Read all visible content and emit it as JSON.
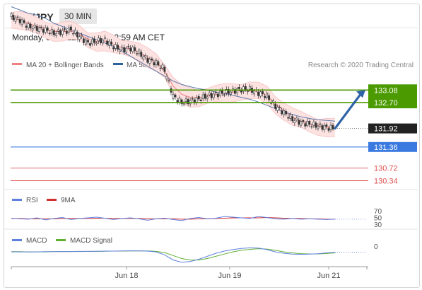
{
  "header": {
    "pair": "GBP/JPY",
    "timeframe": "30 MIN"
  },
  "timestamp": "Monday, June 22, 2020 1:02:59 AM CET",
  "main_legend": {
    "bb": "MA 20 + Bollinger Bands",
    "ma50": "MA 50",
    "credit": "Research © 2020 Trading Central"
  },
  "rsi_legend": {
    "rsi": "RSI",
    "ma": "9MA"
  },
  "macd_legend": {
    "macd": "MACD",
    "signal": "MACD Signal"
  },
  "colors": {
    "bb": "#f08080",
    "bb_fill": "#fde2e2",
    "ma50": "#5a78a8",
    "resistance": "#4a9a00",
    "pivot": "#3a7ae0",
    "support": "#e05050",
    "candle": "#333333",
    "rsi": "#6080e0",
    "rsi_ma": "#d03030",
    "macd": "#6080e0",
    "macd_signal": "#60b030",
    "arrow": "#2f63a8",
    "current": "#222222"
  },
  "chart_data": [
    {
      "type": "candlestick",
      "title": "GBP/JPY",
      "interval": "30 MIN",
      "x_tick_labels": [
        "Jun 18",
        "Jun 19",
        "Jun 21"
      ],
      "ylim": [
        130.2,
        133.6
      ],
      "levels": [
        {
          "label": "133.08",
          "value": 133.08,
          "kind": "resistance"
        },
        {
          "label": "132.70",
          "value": 132.7,
          "kind": "resistance"
        },
        {
          "label": "131.92",
          "value": 131.92,
          "kind": "current"
        },
        {
          "label": "131.36",
          "value": 131.36,
          "kind": "pivot"
        },
        {
          "label": "130.72",
          "value": 130.72,
          "kind": "support"
        },
        {
          "label": "130.34",
          "value": 130.34,
          "kind": "support"
        }
      ],
      "price_series": [
        {
          "name": "close",
          "values": [
            135.3,
            135.2,
            135.0,
            134.95,
            134.9,
            134.8,
            134.85,
            134.9,
            134.7,
            134.5,
            134.55,
            134.6,
            134.4,
            134.3,
            134.35,
            134.2,
            134.0,
            133.9,
            133.7,
            132.9,
            132.7,
            132.75,
            132.8,
            132.9,
            132.95,
            133.0,
            133.05,
            133.1,
            133.1,
            133.0,
            132.9,
            132.6,
            132.4,
            132.2,
            132.1,
            132.05,
            132.0,
            131.95,
            131.92
          ]
        },
        {
          "name": "MA 50",
          "values": [
            135.6,
            135.5,
            135.4,
            135.35,
            135.25,
            135.1,
            135.0,
            134.9,
            134.8,
            134.7,
            134.6,
            134.5,
            134.4,
            134.25,
            134.1,
            133.95,
            133.8,
            133.65,
            133.5,
            133.35,
            133.25,
            133.18,
            133.12,
            133.08,
            133.02,
            132.98,
            132.92,
            132.86,
            132.8,
            132.72,
            132.62,
            132.52,
            132.42,
            132.34,
            132.27,
            132.22,
            132.18,
            132.16,
            132.14
          ]
        },
        {
          "name": "MA 20 + Bollinger Bands",
          "values": [
            135.25,
            135.2,
            135.1,
            135.0,
            134.92,
            134.85,
            134.85,
            134.86,
            134.78,
            134.62,
            134.55,
            134.56,
            134.46,
            134.36,
            134.33,
            134.22,
            134.06,
            133.92,
            133.66,
            133.2,
            132.95,
            132.86,
            132.85,
            132.9,
            132.94,
            132.98,
            133.02,
            133.06,
            133.06,
            133.02,
            132.92,
            132.66,
            132.46,
            132.26,
            132.14,
            132.06,
            132.0,
            131.96,
            131.93
          ]
        }
      ]
    },
    {
      "type": "line",
      "title": "RSI",
      "y_tick_labels": [
        "70",
        "50",
        "30"
      ],
      "ylim": [
        20,
        80
      ],
      "series": [
        {
          "name": "RSI",
          "values": [
            48,
            46,
            45,
            49,
            43,
            47,
            50,
            44,
            47,
            49,
            51,
            48,
            44,
            47,
            49,
            46,
            42,
            46,
            48,
            44,
            41,
            47,
            50,
            46,
            48,
            53,
            51,
            49,
            47,
            53,
            50,
            46,
            45,
            47,
            45,
            46,
            45,
            44,
            45
          ]
        },
        {
          "name": "9MA",
          "values": [
            47,
            47,
            46,
            46,
            46,
            46,
            47,
            47,
            47,
            47,
            48,
            48,
            47,
            47,
            47,
            47,
            46,
            46,
            46,
            46,
            45,
            45,
            46,
            46,
            47,
            48,
            49,
            49,
            49,
            49,
            50,
            49,
            48,
            47,
            47,
            46,
            46,
            45,
            45
          ]
        }
      ]
    },
    {
      "type": "line",
      "title": "MACD",
      "y_tick_labels": [
        "0"
      ],
      "ylim": [
        -1,
        1
      ],
      "series": [
        {
          "name": "MACD",
          "values": [
            -0.05,
            -0.05,
            -0.06,
            -0.05,
            -0.04,
            -0.04,
            -0.03,
            -0.03,
            -0.02,
            -0.02,
            -0.01,
            0.0,
            0.0,
            0.01,
            0.02,
            0.01,
            0.0,
            -0.05,
            -0.25,
            -0.6,
            -0.75,
            -0.7,
            -0.55,
            -0.35,
            -0.15,
            0.0,
            0.1,
            0.18,
            0.22,
            0.2,
            0.1,
            -0.05,
            -0.15,
            -0.2,
            -0.22,
            -0.2,
            -0.18,
            -0.12,
            -0.08
          ]
        },
        {
          "name": "MACD Signal",
          "values": [
            -0.04,
            -0.04,
            -0.05,
            -0.05,
            -0.05,
            -0.04,
            -0.04,
            -0.03,
            -0.03,
            -0.02,
            -0.02,
            -0.01,
            0.0,
            0.0,
            0.01,
            0.01,
            0.01,
            -0.02,
            -0.1,
            -0.3,
            -0.5,
            -0.6,
            -0.6,
            -0.5,
            -0.35,
            -0.2,
            -0.05,
            0.05,
            0.12,
            0.16,
            0.14,
            0.05,
            -0.05,
            -0.12,
            -0.17,
            -0.19,
            -0.19,
            -0.16,
            -0.12
          ]
        }
      ]
    }
  ]
}
